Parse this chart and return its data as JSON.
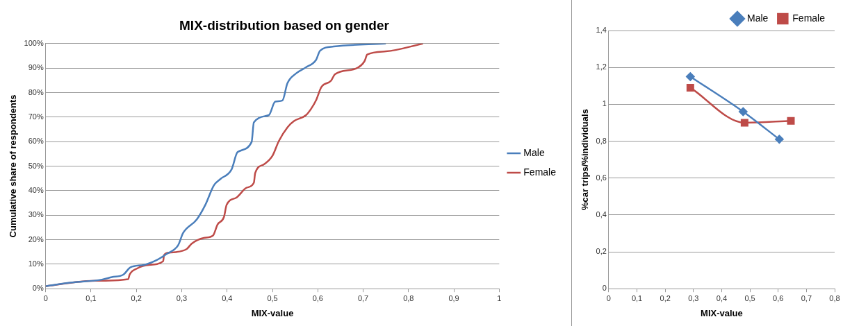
{
  "chart_data": [
    {
      "type": "line",
      "title": "MIX-distribution based on gender",
      "xlabel": "MIX-value",
      "ylabel": "Cumulative share of respondents",
      "xlim": [
        0,
        1
      ],
      "xticks": [
        {
          "value": 0,
          "label": "0"
        },
        {
          "value": 0.1,
          "label": "0,1"
        },
        {
          "value": 0.2,
          "label": "0,2"
        },
        {
          "value": 0.3,
          "label": "0,3"
        },
        {
          "value": 0.4,
          "label": "0,4"
        },
        {
          "value": 0.5,
          "label": "0,5"
        },
        {
          "value": 0.6,
          "label": "0,6"
        },
        {
          "value": 0.7,
          "label": "0,7"
        },
        {
          "value": 0.8,
          "label": "0,8"
        },
        {
          "value": 0.9,
          "label": "0,9"
        },
        1
      ],
      "ylim": [
        0,
        100
      ],
      "yticks": [
        {
          "value": 0,
          "label": "0%"
        },
        {
          "value": 10,
          "label": "10%"
        },
        {
          "value": 20,
          "label": "20%"
        },
        {
          "value": 30,
          "label": "30%"
        },
        {
          "value": 40,
          "label": "40%"
        },
        {
          "value": 50,
          "label": "50%"
        },
        {
          "value": 60,
          "label": "60%"
        },
        {
          "value": 70,
          "label": "70%"
        },
        {
          "value": 80,
          "label": "80%"
        },
        {
          "value": 90,
          "label": "90%"
        },
        {
          "value": 100,
          "label": "100%"
        }
      ],
      "grid": "y",
      "legend": "right",
      "series": [
        {
          "name": "Male",
          "color": "#4a7ebb",
          "x": [
            0,
            0.058,
            0.124,
            0.146,
            0.171,
            0.187,
            0.217,
            0.245,
            0.267,
            0.292,
            0.303,
            0.333,
            0.352,
            0.371,
            0.385,
            0.41,
            0.423,
            0.454,
            0.459,
            0.492,
            0.506,
            0.522,
            0.533,
            0.552,
            0.574,
            0.596,
            0.605,
            0.635,
            0.75
          ],
          "values": [
            1,
            2.5,
            3.7,
            4.7,
            5.7,
            8.7,
            9.7,
            11.7,
            14.2,
            17.7,
            22.7,
            28.2,
            34.2,
            42.2,
            44.7,
            48.7,
            55.7,
            59.8,
            67.8,
            70.8,
            76.3,
            76.8,
            83.8,
            87.8,
            90.3,
            93.3,
            97.1,
            98.8,
            100
          ]
        },
        {
          "name": "Female",
          "color": "#be4b48",
          "x": [
            0,
            0.102,
            0.182,
            0.185,
            0.201,
            0.228,
            0.259,
            0.261,
            0.272,
            0.311,
            0.322,
            0.349,
            0.369,
            0.379,
            0.393,
            0.399,
            0.421,
            0.443,
            0.459,
            0.462,
            0.481,
            0.5,
            0.514,
            0.533,
            0.547,
            0.574,
            0.585,
            0.596,
            0.608,
            0.629,
            0.638,
            0.684,
            0.703,
            0.709,
            0.75,
            0.832
          ],
          "values": [
            1,
            3.2,
            3.9,
            5.7,
            8.2,
            9.7,
            11.2,
            13.7,
            14.7,
            16.2,
            18.4,
            20.7,
            21.7,
            26.2,
            29.2,
            34.2,
            37.2,
            41.2,
            43.2,
            47.2,
            50.7,
            54.2,
            60.2,
            65.8,
            68.3,
            70.8,
            73.3,
            76.8,
            82.3,
            84.8,
            87.5,
            89.8,
            92.8,
            95.5,
            96.8,
            100
          ]
        }
      ]
    },
    {
      "type": "line",
      "xlabel": "MIX-value",
      "ylabel": "%car trips/%individuals",
      "xlim": [
        0,
        0.8
      ],
      "xticks": [
        {
          "value": 0,
          "label": "0"
        },
        {
          "value": 0.1,
          "label": "0,1"
        },
        {
          "value": 0.2,
          "label": "0,2"
        },
        {
          "value": 0.3,
          "label": "0,3"
        },
        {
          "value": 0.4,
          "label": "0,4"
        },
        {
          "value": 0.5,
          "label": "0,5"
        },
        {
          "value": 0.6,
          "label": "0,6"
        },
        {
          "value": 0.7,
          "label": "0,7"
        },
        {
          "value": 0.8,
          "label": "0,8"
        }
      ],
      "ylim": [
        0,
        1.4
      ],
      "yticks": [
        {
          "value": 0,
          "label": "0"
        },
        {
          "value": 0.2,
          "label": "0,2"
        },
        {
          "value": 0.4,
          "label": "0,4"
        },
        {
          "value": 0.6,
          "label": "0,6"
        },
        {
          "value": 0.8,
          "label": "0,8"
        },
        1,
        {
          "value": 1.2,
          "label": "1,2"
        },
        {
          "value": 1.4,
          "label": "1,4"
        }
      ],
      "grid": "y",
      "legend": "top right",
      "series": [
        {
          "name": "Male",
          "color": "#4a7ebb",
          "marker": "diamond",
          "x": [
            0.289,
            0.476,
            0.604
          ],
          "values": [
            1.15,
            0.96,
            0.81
          ]
        },
        {
          "name": "Female",
          "color": "#be4b48",
          "marker": "square",
          "x": [
            0.289,
            0.481,
            0.645
          ],
          "values": [
            1.09,
            0.9,
            0.91
          ]
        }
      ]
    }
  ]
}
